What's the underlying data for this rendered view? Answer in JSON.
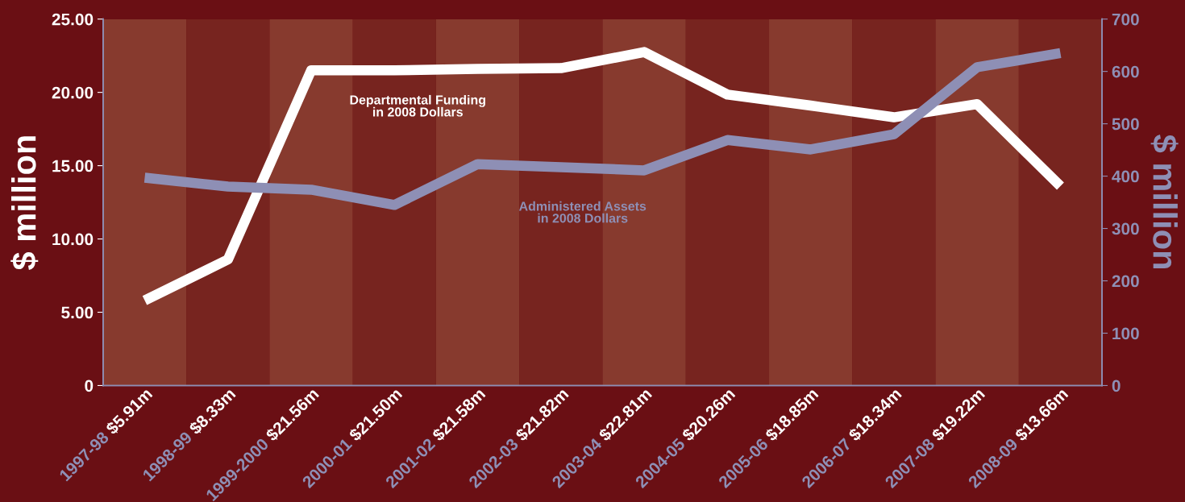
{
  "chart_data": {
    "type": "line",
    "categories": [
      "1997-98 $5.91m",
      "1998-99 $8.33m",
      "1999-2000 $21.56m",
      "2000-01 $21.50m",
      "2001-02 $21.58m",
      "2002-03 $21.82m",
      "2003-04 $22.81m",
      "2004-05 $20.26m",
      "2005-06 $18.85m",
      "2006-07 $18.34m",
      "2007-08 $19.22m",
      "2008-09 $13.66m"
    ],
    "series": [
      {
        "name": "Departmental Funding\nin 2008 Dollars",
        "color": "#ffffff",
        "values": [
          5.8,
          8.6,
          21.5,
          21.5,
          21.6,
          21.65,
          22.75,
          19.85,
          19.1,
          18.3,
          19.2,
          13.6
        ]
      },
      {
        "name": "Administered Assets\nin 2008 Dollars",
        "color": "#8e8fb5",
        "axis": "y2",
        "values": [
          397,
          380,
          374,
          345,
          423,
          417,
          411,
          469,
          451,
          480,
          608,
          635
        ]
      }
    ],
    "ylabel": "$ million",
    "y2label": "$ million",
    "ylim": [
      0,
      25
    ],
    "yticks": [
      0,
      {
        "value": 5,
        "label": "5.00"
      },
      {
        "value": 10,
        "label": "10.00"
      },
      {
        "value": 15,
        "label": "15.00"
      },
      {
        "value": 20,
        "label": "20.00"
      },
      {
        "value": 25,
        "label": "25.00"
      }
    ],
    "y2lim": [
      0,
      700
    ],
    "y2ticks": [
      0,
      100,
      200,
      300,
      400,
      500,
      600,
      700
    ],
    "bands": [
      {
        "axis": "x",
        "from": "1997-98 $5.91m",
        "to": "1997-98 $5.91m",
        "color": "#873a2e"
      },
      {
        "axis": "x",
        "from": "1998-99 $8.33m",
        "to": "1998-99 $8.33m",
        "color": "#77241f"
      },
      {
        "axis": "x",
        "from": "1999-2000 $21.56m",
        "to": "1999-2000 $21.56m",
        "color": "#873a2e"
      },
      {
        "axis": "x",
        "from": "2000-01 $21.50m",
        "to": "2000-01 $21.50m",
        "color": "#77241f"
      },
      {
        "axis": "x",
        "from": "2001-02 $21.58m",
        "to": "2001-02 $21.58m",
        "color": "#873a2e"
      },
      {
        "axis": "x",
        "from": "2002-03 $21.82m",
        "to": "2002-03 $21.82m",
        "color": "#77241f"
      },
      {
        "axis": "x",
        "from": "2003-04 $22.81m",
        "to": "2003-04 $22.81m",
        "color": "#873a2e"
      },
      {
        "axis": "x",
        "from": "2004-05 $20.26m",
        "to": "2004-05 $20.26m",
        "color": "#77241f"
      },
      {
        "axis": "x",
        "from": "2005-06 $18.85m",
        "to": "2005-06 $18.85m",
        "color": "#873a2e"
      },
      {
        "axis": "x",
        "from": "2006-07 $18.34m",
        "to": "2006-07 $18.34m",
        "color": "#77241f"
      },
      {
        "axis": "x",
        "from": "2007-08 $19.22m",
        "to": "2007-08 $19.22m",
        "color": "#873a2e"
      },
      {
        "axis": "x",
        "from": "2008-09 $13.66m",
        "to": "2008-09 $13.66m",
        "color": "#77241f"
      }
    ],
    "grid": false,
    "legend": false,
    "marker": "none",
    "line_style": "solid"
  }
}
